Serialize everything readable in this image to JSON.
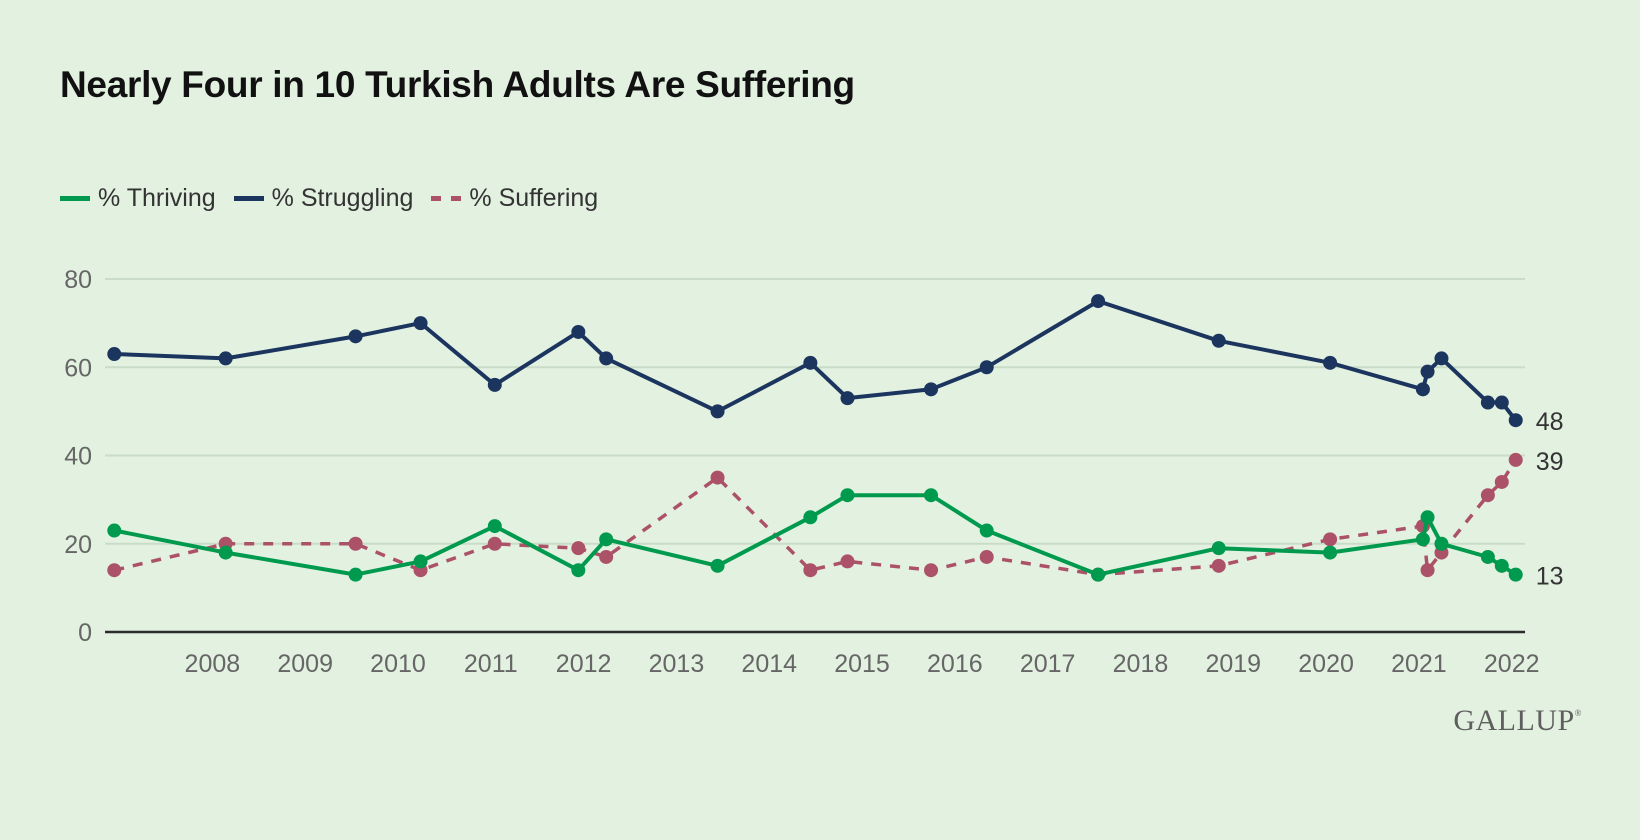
{
  "title": "Nearly Four in 10 Turkish Adults Are Suffering",
  "brand": "GALLUP",
  "brand_mark": "®",
  "chart_data": {
    "type": "line",
    "title": "Nearly Four in 10 Turkish Adults Are Suffering",
    "xlabel": "",
    "ylabel": "",
    "ylim": [
      0,
      80
    ],
    "yticks": [
      0,
      20,
      40,
      60,
      80
    ],
    "xticks": [
      "2008",
      "2009",
      "2010",
      "2011",
      "2012",
      "2013",
      "2014",
      "2015",
      "2016",
      "2017",
      "2018",
      "2019",
      "2020",
      "2021",
      "2022"
    ],
    "xlim": [
      2007.3,
      2022.6
    ],
    "grid": true,
    "legend_position": "top-left",
    "x": [
      2007.4,
      2008.6,
      2010.0,
      2010.7,
      2011.5,
      2012.4,
      2012.7,
      2013.9,
      2014.9,
      2015.3,
      2016.2,
      2016.8,
      2018.0,
      2019.3,
      2020.5,
      2021.5,
      2021.55,
      2021.7,
      2022.2,
      2022.35,
      2022.5
    ],
    "series": [
      {
        "name": "% Thriving",
        "color": "#009a4e",
        "style": "solid",
        "values": [
          23,
          18,
          13,
          16,
          24,
          14,
          21,
          15,
          26,
          31,
          31,
          23,
          13,
          19,
          18,
          21,
          26,
          20,
          17,
          15,
          13
        ],
        "end_label": "13"
      },
      {
        "name": "% Struggling",
        "color": "#1b355e",
        "style": "solid",
        "values": [
          63,
          62,
          67,
          70,
          56,
          68,
          62,
          50,
          61,
          53,
          55,
          60,
          75,
          66,
          61,
          55,
          59,
          62,
          52,
          52,
          48
        ],
        "end_label": "48"
      },
      {
        "name": "% Suffering",
        "color": "#ac5268",
        "style": "dashed",
        "values": [
          14,
          20,
          20,
          14,
          20,
          19,
          17,
          35,
          14,
          16,
          14,
          17,
          13,
          15,
          21,
          24,
          14,
          18,
          31,
          34,
          39
        ],
        "end_label": "39"
      }
    ]
  }
}
